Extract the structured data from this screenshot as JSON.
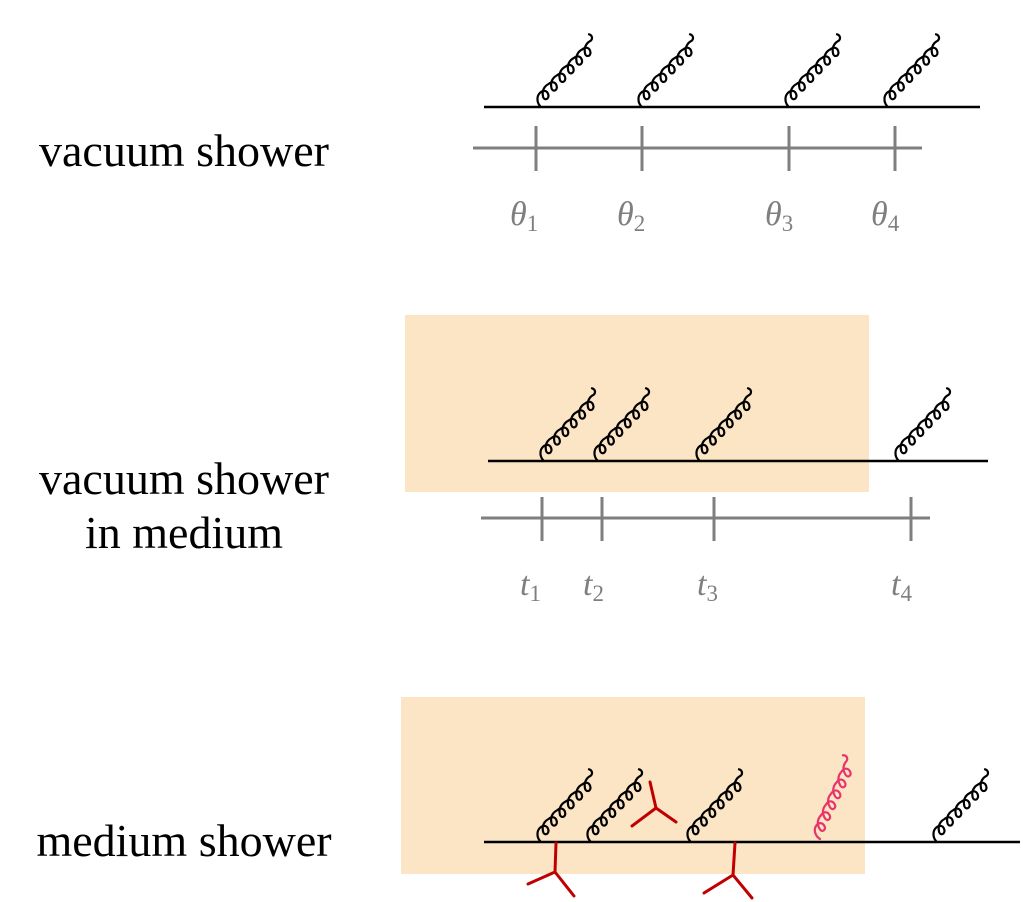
{
  "rows": [
    {
      "label": "vacuum shower"
    },
    {
      "label_line1": "vacuum shower",
      "label_line2": "in medium"
    },
    {
      "label": "medium shower"
    }
  ],
  "vacuum_axis": {
    "ticks": [
      {
        "symbol": "θ",
        "sub": "1"
      },
      {
        "symbol": "θ",
        "sub": "2"
      },
      {
        "symbol": "θ",
        "sub": "3"
      },
      {
        "symbol": "θ",
        "sub": "4"
      }
    ]
  },
  "medium_axis": {
    "ticks": [
      {
        "symbol": "t",
        "sub": "1"
      },
      {
        "symbol": "t",
        "sub": "2"
      },
      {
        "symbol": "t",
        "sub": "3"
      },
      {
        "symbol": "t",
        "sub": "4"
      }
    ]
  },
  "colors": {
    "medium_region": "#fbe5c4",
    "axis": "#7f7f7f",
    "line": "#000000",
    "scatter": "#c00000",
    "medium_gluon": "#e8336b"
  }
}
